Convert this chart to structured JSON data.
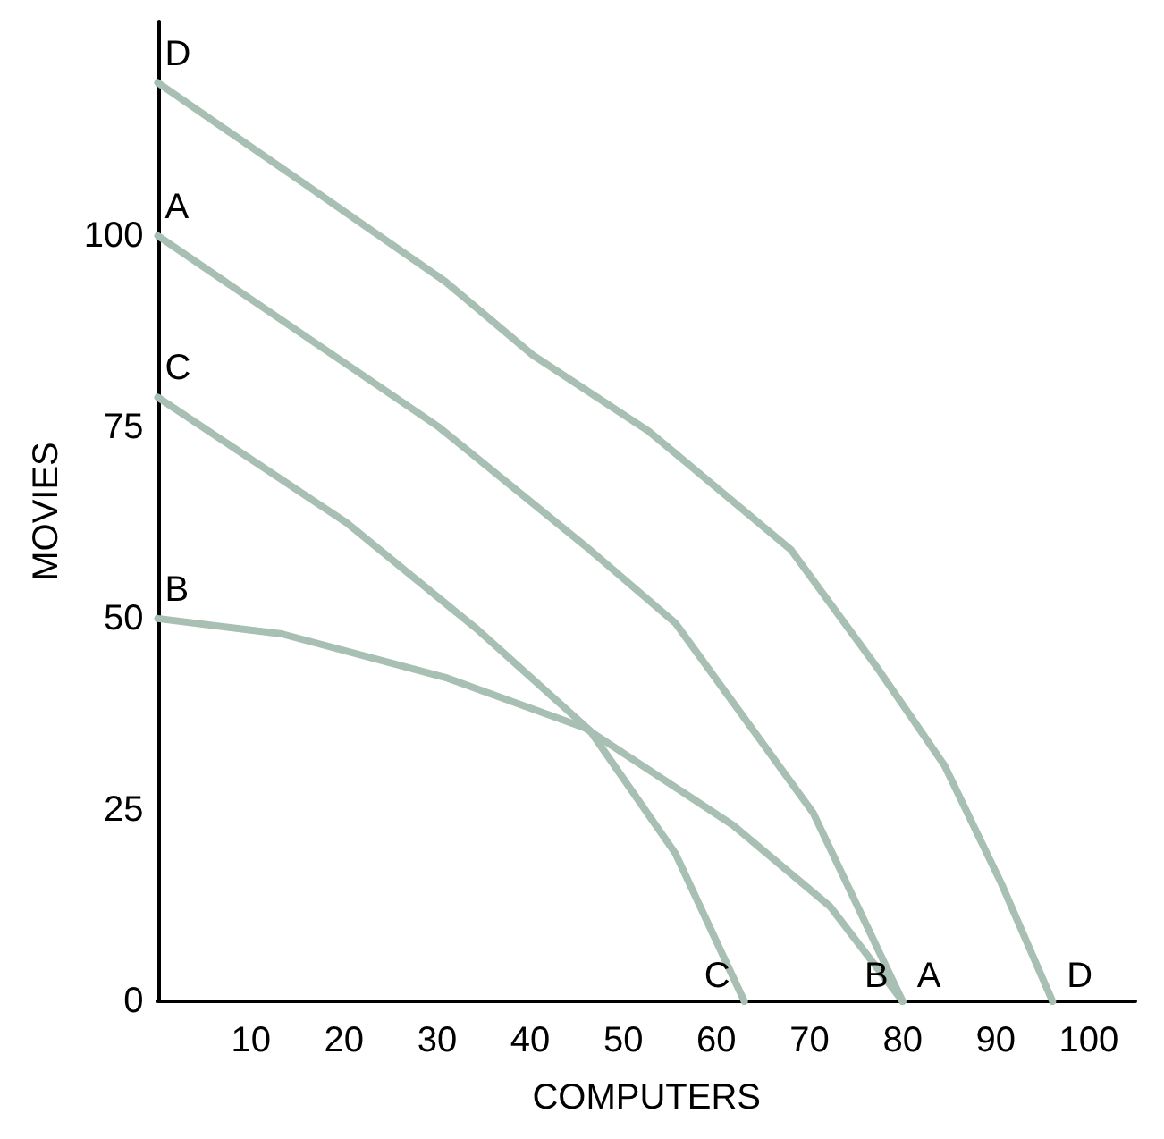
{
  "chart_data": {
    "type": "line",
    "xlabel": "COMPUTERS",
    "ylabel": "MOVIES",
    "xlim": [
      0,
      105
    ],
    "ylim": [
      0,
      128
    ],
    "xticks": [
      10,
      20,
      30,
      40,
      50,
      60,
      70,
      80,
      90,
      100
    ],
    "yticks": [
      0,
      25,
      50,
      75,
      100
    ],
    "grid": false,
    "legend": false,
    "marker": "none",
    "line_style": "solid",
    "series": [
      {
        "name": "A",
        "color": "#a8bfb3",
        "x": [
          0,
          30.2,
          45.9,
          55.6,
          70.4,
          80
        ],
        "values": [
          100,
          75,
          59.5,
          49.4,
          24.6,
          0
        ]
      },
      {
        "name": "B",
        "color": "#a8bfb3",
        "x": [
          0,
          13.3,
          30.9,
          45.9,
          61.8,
          72.2,
          80
        ],
        "values": [
          50,
          48,
          42.3,
          35.7,
          23,
          12.4,
          0
        ]
      },
      {
        "name": "C",
        "color": "#a8bfb3",
        "x": [
          0,
          20.3,
          34.4,
          46.4,
          55.6,
          63
        ],
        "values": [
          78.9,
          62.5,
          48.5,
          35.4,
          19.3,
          0
        ]
      },
      {
        "name": "D",
        "color": "#a8bfb3",
        "x": [
          0,
          15.5,
          30.9,
          40.3,
          52.7,
          68,
          77.2,
          84.5,
          90.6,
          96.1
        ],
        "values": [
          120,
          107,
          94,
          84.4,
          74.5,
          59,
          43.7,
          30.8,
          15.4,
          0
        ]
      }
    ]
  }
}
